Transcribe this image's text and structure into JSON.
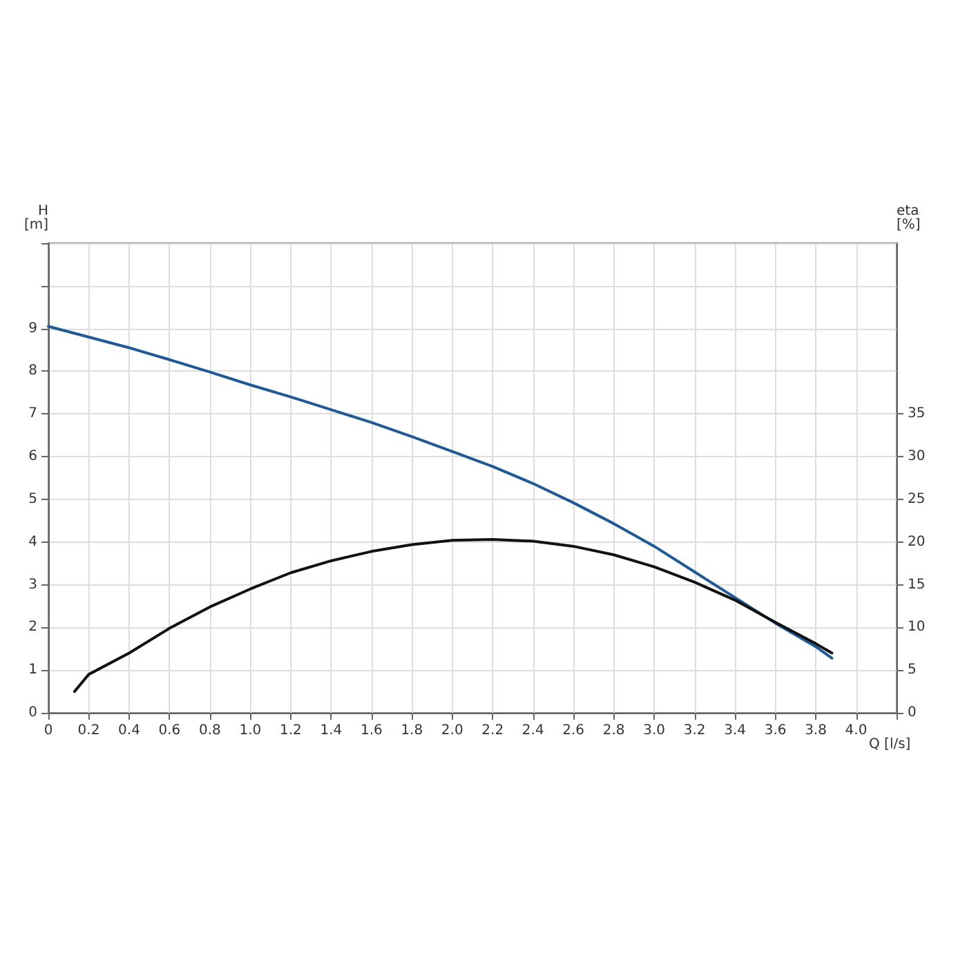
{
  "chart_data": {
    "type": "line",
    "xlabel": "Q [l/s]",
    "ylabel": "H\n[m]",
    "y2label": "eta\n[%]",
    "xlim": [
      0,
      4.2
    ],
    "xticks": [
      0,
      0.2,
      0.4,
      0.6,
      0.8,
      {
        "value": 1,
        "label": "1.0"
      },
      1.2,
      1.4,
      1.6,
      1.8,
      {
        "value": 2,
        "label": "2.0"
      },
      2.2,
      2.4,
      2.6,
      2.8,
      {
        "value": 3,
        "label": "3.0"
      },
      3.2,
      3.4,
      3.6,
      3.8,
      {
        "value": 4,
        "label": "4.0"
      },
      {
        "value": 4.2,
        "label": null
      }
    ],
    "ylim": [
      0,
      11
    ],
    "yticks": [
      0,
      1,
      2,
      3,
      4,
      5,
      6,
      7,
      8,
      9,
      {
        "value": 10,
        "label": null
      },
      {
        "value": 11,
        "label": null
      }
    ],
    "y2lim": [
      0,
      55
    ],
    "y2ticks": [
      0,
      5,
      10,
      15,
      20,
      25,
      30,
      35
    ],
    "grid": true,
    "marker": "none",
    "line_style": "solid",
    "series": [
      {
        "color": "#1f5a96",
        "x": [
          0,
          0.2,
          0.4,
          0.6,
          0.8,
          1.0,
          1.2,
          1.4,
          1.6,
          1.8,
          2.0,
          2.2,
          2.4,
          2.6,
          2.8,
          3.0,
          3.2,
          3.4,
          3.6,
          3.8,
          3.88
        ],
        "values": [
          9.05,
          8.8,
          8.55,
          8.27,
          7.98,
          7.68,
          7.4,
          7.1,
          6.8,
          6.47,
          6.12,
          5.77,
          5.37,
          4.92,
          4.43,
          3.9,
          3.3,
          2.7,
          2.1,
          1.55,
          1.28
        ]
      },
      {
        "color": "#111111",
        "axis": "y2",
        "x": [
          0.13,
          0.2,
          0.4,
          0.6,
          0.8,
          1.0,
          1.2,
          1.4,
          1.6,
          1.8,
          2.0,
          2.2,
          2.4,
          2.6,
          2.8,
          3.0,
          3.2,
          3.4,
          3.6,
          3.8,
          3.88
        ],
        "values": [
          2.5,
          4.5,
          7,
          9.9,
          12.4,
          14.5,
          16.4,
          17.8,
          18.9,
          19.7,
          20.2,
          20.3,
          20.1,
          19.5,
          18.5,
          17.1,
          15.3,
          13.2,
          10.6,
          8.1,
          7.0
        ]
      }
    ]
  }
}
